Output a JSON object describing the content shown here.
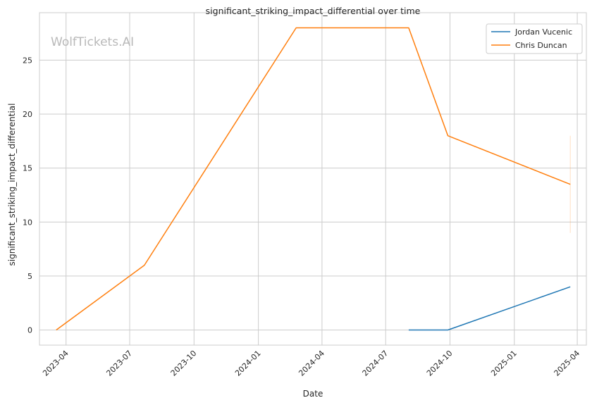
{
  "chart_data": {
    "type": "line",
    "title": "significant_striking_impact_differential over time",
    "xlabel": "Date",
    "ylabel": "significant_striking_impact_differential",
    "watermark": "WolfTickets.AI",
    "x_ticks": [
      "2023-04",
      "2023-07",
      "2023-10",
      "2024-01",
      "2024-04",
      "2024-07",
      "2024-10",
      "2025-01",
      "2025-04"
    ],
    "y_ticks": [
      0,
      5,
      10,
      15,
      20,
      25
    ],
    "xlim": [
      "2023-02-22",
      "2025-04-14"
    ],
    "ylim": [
      -1.4,
      29.4
    ],
    "grid": true,
    "legend_position": "top-right",
    "series": [
      {
        "name": "Jordan Vucenic",
        "color": "#1f77b4",
        "points": [
          {
            "x": "2024-08-03",
            "y": 0
          },
          {
            "x": "2024-09-28",
            "y": 0
          },
          {
            "x": "2025-03-22",
            "y": 4
          }
        ]
      },
      {
        "name": "Chris Duncan",
        "color": "#ff7f0e",
        "points": [
          {
            "x": "2023-03-18",
            "y": 0
          },
          {
            "x": "2023-07-22",
            "y": 6
          },
          {
            "x": "2024-02-24",
            "y": 28
          },
          {
            "x": "2024-08-03",
            "y": 28
          },
          {
            "x": "2024-09-28",
            "y": 18
          },
          {
            "x": "2025-03-22",
            "y": 13.5
          }
        ],
        "error_band": {
          "x": "2025-03-22",
          "low": 9,
          "high": 18
        }
      }
    ]
  }
}
